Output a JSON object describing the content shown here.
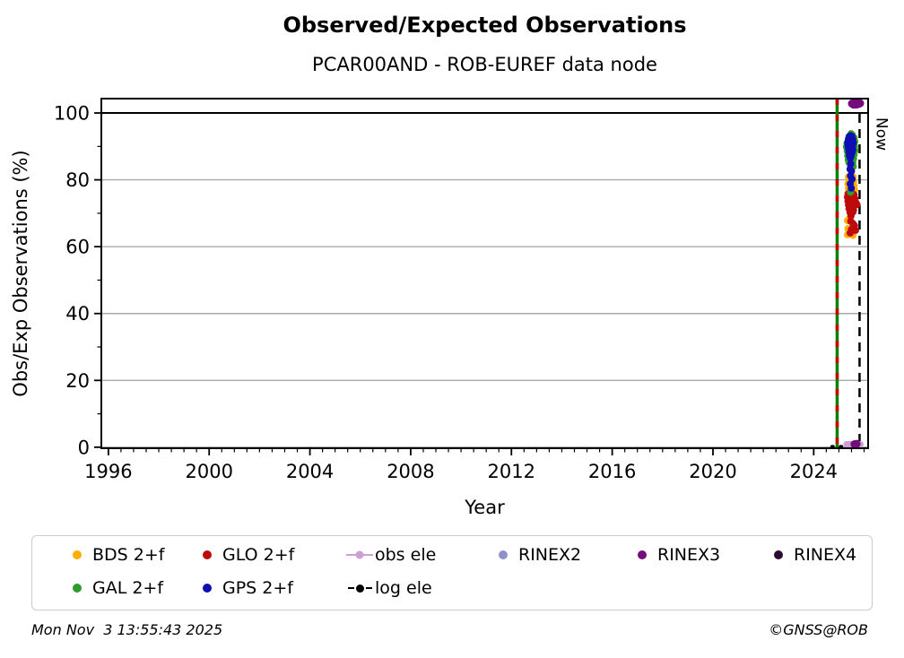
{
  "title": "Observed/Expected Observations",
  "subtitle": "PCAR00AND - ROB-EUREF data node",
  "footer": {
    "left": "Mon Nov  3 13:55:43 2025",
    "right": "©GNSS@ROB"
  },
  "chart_data": {
    "type": "scatter",
    "title": "Observed/Expected Observations",
    "subtitle": "PCAR00AND - ROB-EUREF data node",
    "xlabel": "Year",
    "ylabel": "Obs/Exp Observations (%)",
    "xlim": [
      1995.72,
      2026.16
    ],
    "ylim": [
      -0.3,
      104.3
    ],
    "x_ticks": [
      1996,
      2000,
      2004,
      2008,
      2012,
      2016,
      2020,
      2024
    ],
    "x_minor_step": 0.5,
    "y_ticks": [
      0,
      20,
      40,
      60,
      80,
      100
    ],
    "y_minor_ticks": [
      10,
      30,
      50,
      70,
      90
    ],
    "grid": "horizontal-only",
    "grid_color": "#a9a9a9",
    "hline_100_color": "#000000",
    "now_label": "Now",
    "vlines": [
      {
        "name": "station-line-green",
        "x": 2024.93,
        "color": "#048204",
        "width": 3.5,
        "dash": ""
      },
      {
        "name": "station-line-red-dashes",
        "x": 2024.93,
        "color": "#cc0000",
        "width": 3.5,
        "dash": "7 11"
      },
      {
        "name": "now-line",
        "x": 2025.82,
        "color": "#000000",
        "width": 2.5,
        "dash": "10 7",
        "label": "Now"
      }
    ],
    "series": [
      {
        "name": "log ele",
        "type": "line",
        "color": "#000000",
        "width": 3.4,
        "dash": "1.5 8",
        "points": [
          [
            2024.72,
            0.2
          ],
          [
            2025.52,
            0.2
          ]
        ]
      },
      {
        "name": "obs ele",
        "type": "line",
        "color": "#cd9fd5",
        "width": 7,
        "dash": "",
        "points": [
          [
            2025.3,
            0.9
          ],
          [
            2025.86,
            0.9
          ]
        ]
      },
      {
        "name": "BDS 2+f",
        "type": "scatter",
        "color": "#ffad00",
        "r": 4,
        "points": [
          [
            2025.38,
            80.9
          ],
          [
            2025.44,
            81.1
          ],
          [
            2025.5,
            80.7
          ],
          [
            2025.56,
            80.9
          ],
          [
            2025.4,
            79.8
          ],
          [
            2025.46,
            79.6
          ],
          [
            2025.52,
            79.9
          ],
          [
            2025.58,
            79.5
          ],
          [
            2025.36,
            78.8
          ],
          [
            2025.42,
            78.6
          ],
          [
            2025.48,
            78.4
          ],
          [
            2025.54,
            78.6
          ],
          [
            2025.6,
            78.2
          ],
          [
            2025.38,
            77.4
          ],
          [
            2025.44,
            77.2
          ],
          [
            2025.5,
            77.0
          ],
          [
            2025.56,
            77.3
          ],
          [
            2025.62,
            76.9
          ],
          [
            2025.4,
            76.0
          ],
          [
            2025.46,
            75.8
          ],
          [
            2025.52,
            75.6
          ],
          [
            2025.58,
            75.4
          ],
          [
            2025.44,
            74.6
          ],
          [
            2025.5,
            74.2
          ],
          [
            2025.56,
            74.4
          ],
          [
            2025.34,
            67.8
          ],
          [
            2025.36,
            65.4
          ],
          [
            2025.34,
            63.6
          ],
          [
            2025.48,
            64.0
          ],
          [
            2025.43,
            68.6
          ],
          [
            2025.56,
            63.4
          ]
        ]
      },
      {
        "name": "GLO 2+f",
        "type": "scatter",
        "color": "#be0a0a",
        "r": 4,
        "points": [
          [
            2025.36,
            75.8
          ],
          [
            2025.42,
            76.0
          ],
          [
            2025.48,
            75.7
          ],
          [
            2025.54,
            75.9
          ],
          [
            2025.6,
            75.5
          ],
          [
            2025.34,
            74.8
          ],
          [
            2025.4,
            74.6
          ],
          [
            2025.46,
            74.9
          ],
          [
            2025.52,
            74.5
          ],
          [
            2025.58,
            74.7
          ],
          [
            2025.64,
            74.3
          ],
          [
            2025.36,
            73.6
          ],
          [
            2025.42,
            73.8
          ],
          [
            2025.48,
            73.5
          ],
          [
            2025.54,
            73.3
          ],
          [
            2025.6,
            73.6
          ],
          [
            2025.68,
            73.1
          ],
          [
            2025.38,
            72.5
          ],
          [
            2025.44,
            72.3
          ],
          [
            2025.5,
            72.6
          ],
          [
            2025.56,
            72.2
          ],
          [
            2025.62,
            72.4
          ],
          [
            2025.72,
            72.6
          ],
          [
            2025.4,
            71.4
          ],
          [
            2025.46,
            71.2
          ],
          [
            2025.52,
            71.5
          ],
          [
            2025.58,
            71.0
          ],
          [
            2025.44,
            70.3
          ],
          [
            2025.5,
            70.1
          ],
          [
            2025.56,
            70.4
          ],
          [
            2025.48,
            69.2
          ],
          [
            2025.47,
            67.6
          ],
          [
            2025.56,
            66.9
          ],
          [
            2025.5,
            65.2
          ],
          [
            2025.62,
            66.3
          ],
          [
            2025.45,
            64.1
          ],
          [
            2025.66,
            64.9
          ]
        ]
      },
      {
        "name": "GAL 2+f",
        "type": "scatter",
        "color": "#2e9d2e",
        "r": 4,
        "points": [
          [
            2025.32,
            90.8
          ],
          [
            2025.3,
            89.8
          ],
          [
            2025.33,
            88.6
          ],
          [
            2025.35,
            87.2
          ],
          [
            2025.37,
            86.0
          ],
          [
            2025.4,
            85.2
          ],
          [
            2025.45,
            84.5
          ],
          [
            2025.6,
            92.6
          ],
          [
            2025.63,
            91.5
          ],
          [
            2025.62,
            90.0
          ],
          [
            2025.64,
            88.8
          ],
          [
            2025.6,
            87.5
          ],
          [
            2025.58,
            86.3
          ],
          [
            2025.55,
            85.2
          ],
          [
            2025.48,
            93.8
          ],
          [
            2025.53,
            93.5
          ],
          [
            2025.4,
            92.9
          ],
          [
            2025.57,
            84.0
          ],
          [
            2025.5,
            85.8
          ],
          [
            2025.46,
            76.3
          ]
        ]
      },
      {
        "name": "GPS 2+f",
        "type": "scatter",
        "color": "#0e0eb4",
        "r": 4,
        "points": [
          [
            2025.42,
            93.0
          ],
          [
            2025.47,
            93.2
          ],
          [
            2025.52,
            92.9
          ],
          [
            2025.38,
            92.2
          ],
          [
            2025.44,
            92.4
          ],
          [
            2025.5,
            92.3
          ],
          [
            2025.55,
            92.0
          ],
          [
            2025.35,
            91.3
          ],
          [
            2025.41,
            91.5
          ],
          [
            2025.47,
            91.4
          ],
          [
            2025.53,
            91.2
          ],
          [
            2025.57,
            91.0
          ],
          [
            2025.36,
            90.3
          ],
          [
            2025.42,
            90.5
          ],
          [
            2025.48,
            90.4
          ],
          [
            2025.54,
            90.2
          ],
          [
            2025.38,
            89.3
          ],
          [
            2025.44,
            89.5
          ],
          [
            2025.5,
            89.2
          ],
          [
            2025.55,
            89.0
          ],
          [
            2025.4,
            88.3
          ],
          [
            2025.46,
            88.4
          ],
          [
            2025.52,
            88.1
          ],
          [
            2025.42,
            87.3
          ],
          [
            2025.48,
            87.1
          ],
          [
            2025.45,
            86.5
          ],
          [
            2025.47,
            84.8
          ],
          [
            2025.44,
            83.2
          ],
          [
            2025.5,
            82.6
          ],
          [
            2025.46,
            81.2
          ],
          [
            2025.52,
            80.2
          ],
          [
            2025.45,
            78.8
          ],
          [
            2025.49,
            77.5
          ]
        ]
      },
      {
        "name": "RINEX3",
        "type": "scatter",
        "color": "#740c7e",
        "r": 4.5,
        "points": [
          [
            2025.52,
            102.8
          ],
          [
            2025.56,
            103.0
          ],
          [
            2025.6,
            102.7
          ],
          [
            2025.64,
            103.1
          ],
          [
            2025.68,
            102.8
          ],
          [
            2025.72,
            103.0
          ],
          [
            2025.76,
            102.9
          ],
          [
            2025.8,
            102.8
          ],
          [
            2025.58,
            102.5
          ],
          [
            2025.66,
            102.5
          ],
          [
            2025.74,
            102.6
          ],
          [
            2025.84,
            102.9
          ],
          [
            2025.62,
            0.9
          ],
          [
            2025.7,
            1.0
          ]
        ]
      }
    ]
  },
  "legend": {
    "cols": [
      33,
      178,
      348,
      508,
      663,
      815
    ],
    "rows": [
      7,
      44
    ],
    "items": [
      {
        "label": "BDS 2+f",
        "color": "#ffad00",
        "type": "dot",
        "row": 0,
        "col": 0
      },
      {
        "label": "GLO 2+f",
        "color": "#be0a0a",
        "type": "dot",
        "row": 0,
        "col": 1
      },
      {
        "label": "obs ele",
        "color": "#cd9fd5",
        "type": "line-dot",
        "row": 0,
        "col": 2
      },
      {
        "label": "RINEX2",
        "color": "#9090cc",
        "type": "dot",
        "row": 0,
        "col": 3
      },
      {
        "label": "RINEX3",
        "color": "#740c7e",
        "type": "dot",
        "row": 0,
        "col": 4
      },
      {
        "label": "RINEX4",
        "color": "#2b0a33",
        "type": "dot",
        "row": 0,
        "col": 5
      },
      {
        "label": "GAL 2+f",
        "color": "#2e9d2e",
        "type": "dot",
        "row": 1,
        "col": 0
      },
      {
        "label": "GPS 2+f",
        "color": "#0e0eb4",
        "type": "dot",
        "row": 1,
        "col": 1
      },
      {
        "label": "log ele",
        "color": "#000000",
        "type": "dash-dot",
        "row": 1,
        "col": 2
      }
    ]
  }
}
